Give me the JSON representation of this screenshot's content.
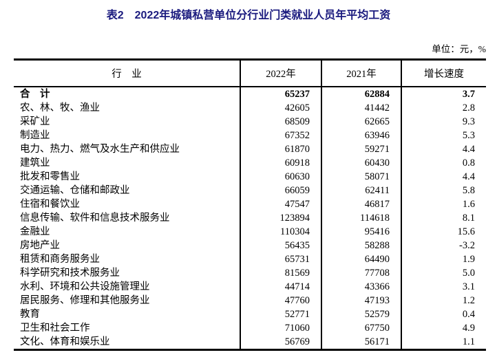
{
  "title": "表2　2022年城镇私营单位分行业门类就业人员年平均工资",
  "unit_note": "单位：元，%",
  "colors": {
    "title": "#1a1a7e",
    "text": "#000000",
    "border": "#000000",
    "background": "#ffffff"
  },
  "table": {
    "headers": {
      "industry": "行　业",
      "year2022": "2022年",
      "year2021": "2021年",
      "growth": "增长速度"
    },
    "rows": [
      {
        "industry": "合　计",
        "y2022": "65237",
        "y2021": "62884",
        "growth": "3.7",
        "bold": true
      },
      {
        "industry": "农、林、牧、渔业",
        "y2022": "42605",
        "y2021": "41442",
        "growth": "2.8",
        "bold": false
      },
      {
        "industry": "采矿业",
        "y2022": "68509",
        "y2021": "62665",
        "growth": "9.3",
        "bold": false
      },
      {
        "industry": "制造业",
        "y2022": "67352",
        "y2021": "63946",
        "growth": "5.3",
        "bold": false
      },
      {
        "industry": "电力、热力、燃气及水生产和供应业",
        "y2022": "61870",
        "y2021": "59271",
        "growth": "4.4",
        "bold": false
      },
      {
        "industry": "建筑业",
        "y2022": "60918",
        "y2021": "60430",
        "growth": "0.8",
        "bold": false
      },
      {
        "industry": "批发和零售业",
        "y2022": "60630",
        "y2021": "58071",
        "growth": "4.4",
        "bold": false
      },
      {
        "industry": "交通运输、仓储和邮政业",
        "y2022": "66059",
        "y2021": "62411",
        "growth": "5.8",
        "bold": false
      },
      {
        "industry": "住宿和餐饮业",
        "y2022": "47547",
        "y2021": "46817",
        "growth": "1.6",
        "bold": false
      },
      {
        "industry": "信息传输、软件和信息技术服务业",
        "y2022": "123894",
        "y2021": "114618",
        "growth": "8.1",
        "bold": false
      },
      {
        "industry": "金融业",
        "y2022": "110304",
        "y2021": "95416",
        "growth": "15.6",
        "bold": false
      },
      {
        "industry": "房地产业",
        "y2022": "56435",
        "y2021": "58288",
        "growth": "-3.2",
        "bold": false
      },
      {
        "industry": "租赁和商务服务业",
        "y2022": "65731",
        "y2021": "64490",
        "growth": "1.9",
        "bold": false
      },
      {
        "industry": "科学研究和技术服务业",
        "y2022": "81569",
        "y2021": "77708",
        "growth": "5.0",
        "bold": false
      },
      {
        "industry": "水利、环境和公共设施管理业",
        "y2022": "44714",
        "y2021": "43366",
        "growth": "3.1",
        "bold": false
      },
      {
        "industry": "居民服务、修理和其他服务业",
        "y2022": "47760",
        "y2021": "47193",
        "growth": "1.2",
        "bold": false
      },
      {
        "industry": "教育",
        "y2022": "52771",
        "y2021": "52579",
        "growth": "0.4",
        "bold": false
      },
      {
        "industry": "卫生和社会工作",
        "y2022": "71060",
        "y2021": "67750",
        "growth": "4.9",
        "bold": false
      },
      {
        "industry": "文化、体育和娱乐业",
        "y2022": "56769",
        "y2021": "56171",
        "growth": "1.1",
        "bold": false
      }
    ]
  }
}
